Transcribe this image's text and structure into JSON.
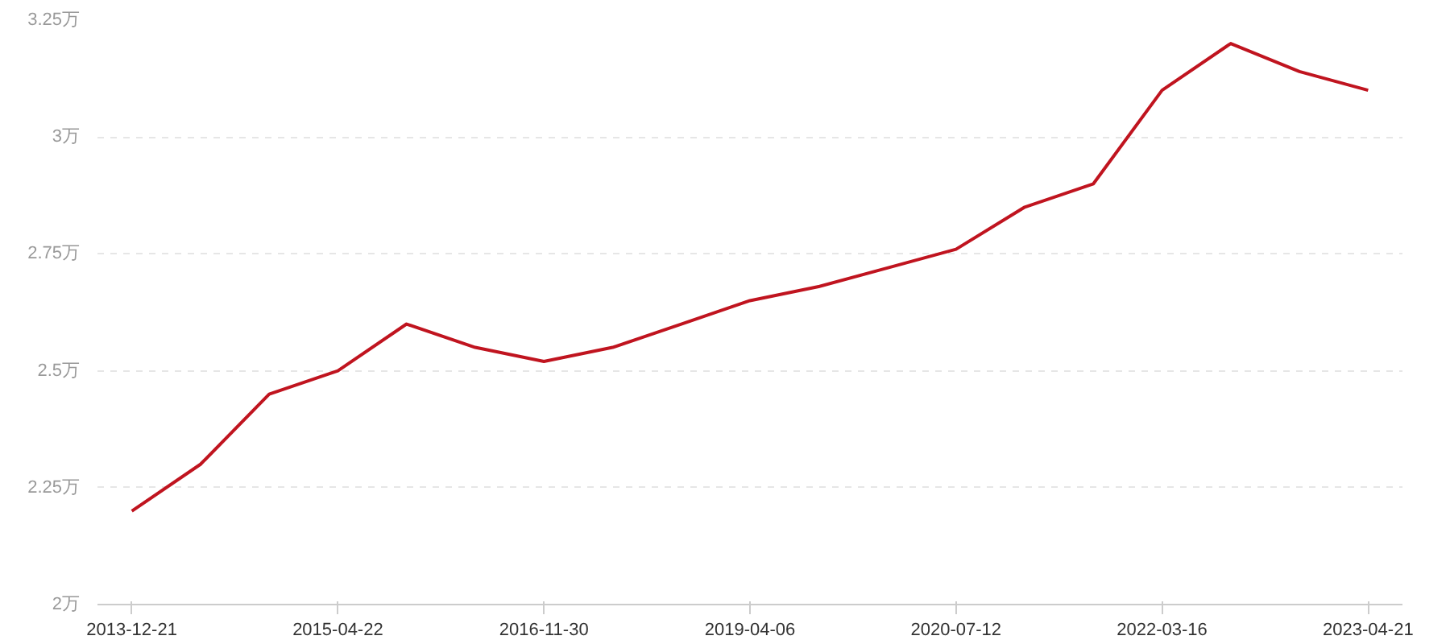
{
  "chart_data": {
    "type": "line",
    "categories": [
      "2013-12-21",
      null,
      null,
      "2015-04-22",
      null,
      null,
      "2016-11-30",
      null,
      null,
      "2019-04-06",
      null,
      null,
      "2020-07-12",
      null,
      null,
      "2022-03-16",
      null,
      null,
      "2023-04-21"
    ],
    "series": [
      {
        "color": "#c0141f",
        "values": [
          2.2,
          2.3,
          2.45,
          2.5,
          2.6,
          2.55,
          2.52,
          2.55,
          2.6,
          2.65,
          2.68,
          2.72,
          2.76,
          2.85,
          2.9,
          3.1,
          3.2,
          3.14,
          3.1
        ]
      }
    ],
    "ylim": [
      2,
      3.25
    ],
    "yticks": [
      {
        "value": 2,
        "label": "2万"
      },
      {
        "value": 2.25,
        "label": "2.25万"
      },
      {
        "value": 2.5,
        "label": "2.5万"
      },
      {
        "value": 2.75,
        "label": "2.75万"
      },
      {
        "value": 3,
        "label": "3万"
      },
      {
        "value": 3.25,
        "label": "3.25万"
      }
    ],
    "grid": "y",
    "marker": "none",
    "line_style": "solid"
  }
}
